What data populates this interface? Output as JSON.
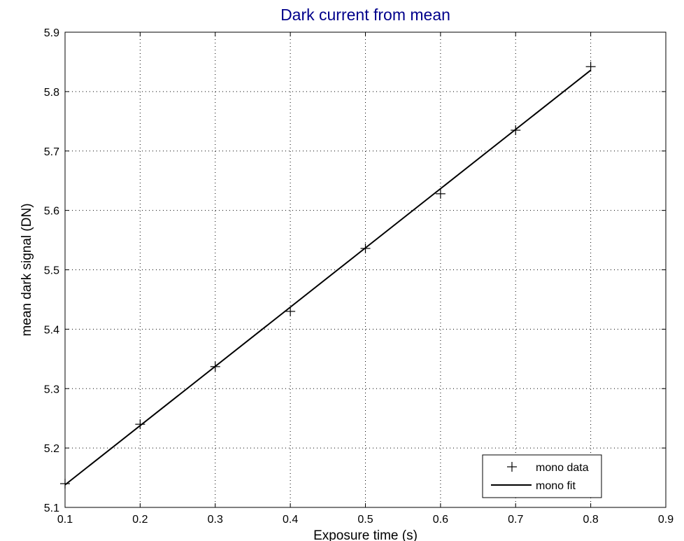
{
  "chart_data": {
    "type": "scatter",
    "title": "Dark current from mean",
    "title_color": "#00008b",
    "xlabel": "Exposure time (s)",
    "ylabel": "mean dark signal (DN)",
    "xlim": [
      0.1,
      0.9
    ],
    "ylim": [
      5.1,
      5.9
    ],
    "xticks": [
      0.1,
      0.2,
      0.3,
      0.4,
      0.5,
      0.6,
      0.7,
      0.8,
      0.9
    ],
    "xtick_labels": [
      "0.1",
      "0.2",
      "0.3",
      "0.4",
      "0.5",
      "0.6",
      "0.7",
      "0.8",
      "0.9"
    ],
    "yticks": [
      5.1,
      5.2,
      5.3,
      5.4,
      5.5,
      5.6,
      5.7,
      5.8,
      5.9
    ],
    "ytick_labels": [
      "5.1",
      "5.2",
      "5.3",
      "5.4",
      "5.5",
      "5.6",
      "5.7",
      "5.8",
      "5.9"
    ],
    "grid": true,
    "grid_style": "dotted",
    "legend_position": "bottom-right",
    "series": [
      {
        "name": "mono data",
        "kind": "markers",
        "marker": "plus",
        "color": "#000000",
        "x": [
          0.1,
          0.2,
          0.3,
          0.4,
          0.5,
          0.6,
          0.7,
          0.8
        ],
        "y": [
          5.14,
          5.24,
          5.337,
          5.43,
          5.536,
          5.628,
          5.735,
          5.842
        ]
      },
      {
        "name": "mono fit",
        "kind": "line",
        "color": "#000000",
        "x": [
          0.1,
          0.8
        ],
        "y": [
          5.138,
          5.836
        ]
      }
    ]
  }
}
